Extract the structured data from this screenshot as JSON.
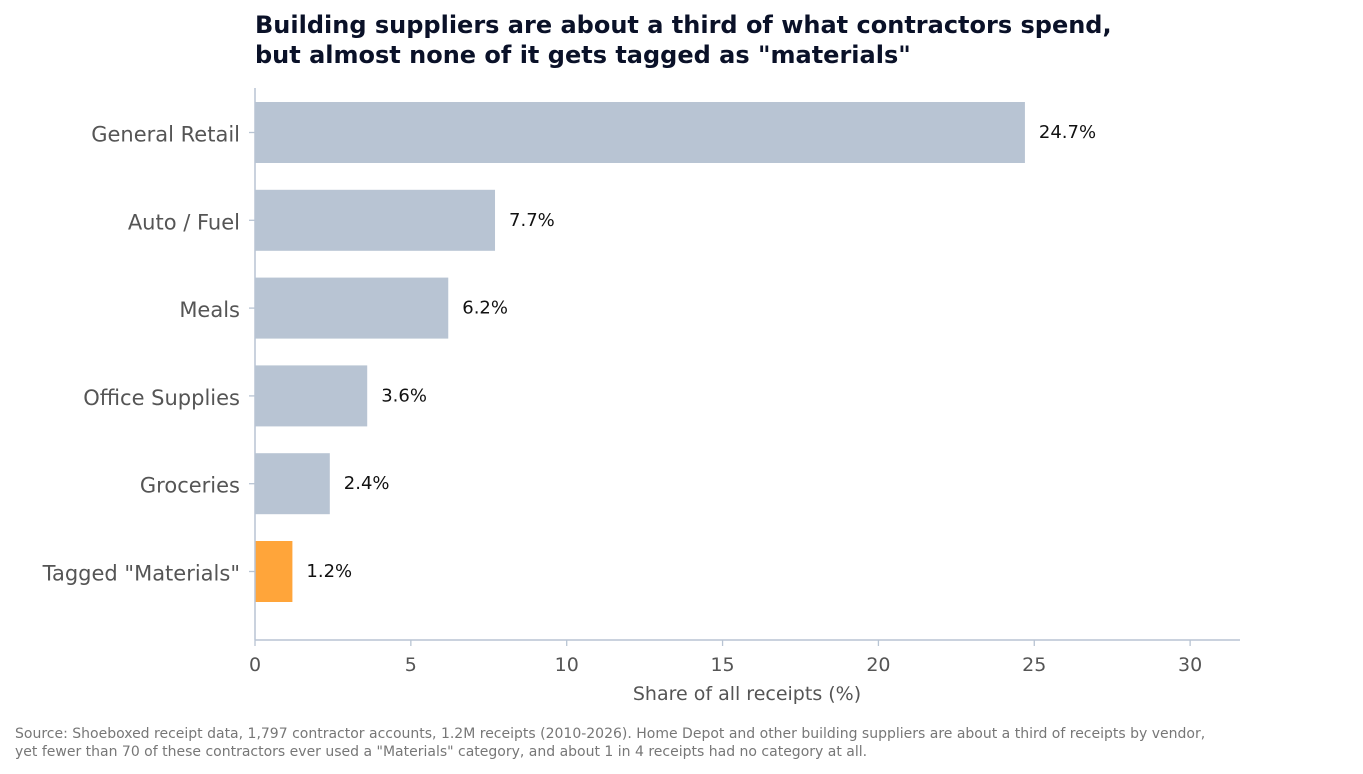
{
  "chart_data": {
    "type": "bar",
    "orientation": "horizontal",
    "title_lines": [
      "Building suppliers are about a third of what contractors spend,",
      "but almost none of it gets tagged as \"materials\""
    ],
    "xlabel": "Share of all receipts (%)",
    "ylabel": "",
    "categories": [
      "General Retail",
      "Auto / Fuel",
      "Meals",
      "Office Supplies",
      "Groceries",
      "Tagged \"Materials\""
    ],
    "values": [
      24.7,
      7.7,
      6.2,
      3.6,
      2.4,
      1.2
    ],
    "value_labels": [
      "24.7%",
      "7.7%",
      "6.2%",
      "3.6%",
      "2.4%",
      "1.2%"
    ],
    "colors": [
      "#b8c4d3",
      "#b8c4d3",
      "#b8c4d3",
      "#b8c4d3",
      "#b8c4d3",
      "#ffa53a"
    ],
    "highlight_category": "Tagged \"Materials\"",
    "xlim": [
      0,
      31.6
    ],
    "xticks": [
      0,
      5,
      10,
      15,
      20,
      25,
      30
    ],
    "grid": false,
    "legend": "none"
  },
  "source_lines": [
    "Source: Shoeboxed receipt data, 1,797 contractor accounts, 1.2M receipts (2010-2026). Home Depot and other building suppliers are about a third of receipts by vendor,",
    "yet fewer than 70 of these contractors ever used a \"Materials\" category, and about 1 in 4 receipts had no category at all."
  ]
}
